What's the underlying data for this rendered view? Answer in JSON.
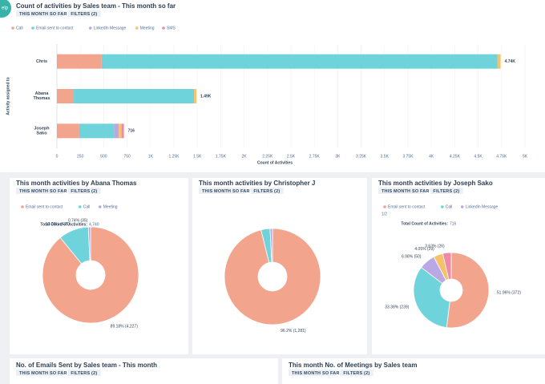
{
  "help_button": "elp",
  "chart_data": [
    {
      "type": "hbar_stacked",
      "title": "Count of activities by Sales team - This month so far",
      "tags": [
        "THIS MONTH SO FAR",
        "FILTERS (2)"
      ],
      "y_label": "Activity assigned to",
      "x_label": "Count of Activities",
      "categories": [
        "Chris",
        "Abana Thomas",
        "Joseph Sako"
      ],
      "series": [
        {
          "name": "Call",
          "color": "#f2a48d",
          "values": [
            478,
            180,
            239
          ]
        },
        {
          "name": "Email sent to contact",
          "color": "#6fd3dc",
          "values": [
            4227,
            1285,
            372
          ]
        },
        {
          "name": "LinkedIn Message",
          "color": "#b9a8e4",
          "values": [
            0,
            0,
            50
          ]
        },
        {
          "name": "Meeting",
          "color": "#f5c26b",
          "values": [
            35,
            25,
            29
          ]
        },
        {
          "name": "SMS",
          "color": "#ee8aa8",
          "values": [
            0,
            0,
            26
          ]
        }
      ],
      "total_labels": [
        "4.74K",
        "1.49K",
        "716"
      ],
      "xlim": [
        0,
        5000
      ],
      "xticks": [
        0,
        250,
        500,
        750,
        {
          "value": 1000,
          "label": "1K"
        },
        {
          "value": 1250,
          "label": "1.25K"
        },
        {
          "value": 1500,
          "label": "1.5K"
        },
        {
          "value": 1750,
          "label": "1.75K"
        },
        {
          "value": 2000,
          "label": "2K"
        },
        {
          "value": 2250,
          "label": "2.25K"
        },
        {
          "value": 2500,
          "label": "2.5K"
        },
        {
          "value": 2750,
          "label": "2.75K"
        },
        {
          "value": 3000,
          "label": "3K"
        },
        {
          "value": 3250,
          "label": "3.25K"
        },
        {
          "value": 3500,
          "label": "3.5K"
        },
        {
          "value": 3750,
          "label": "3.75K"
        },
        {
          "value": 4000,
          "label": "4K"
        },
        {
          "value": 4250,
          "label": "4.25K"
        },
        {
          "value": 4500,
          "label": "4.5K"
        },
        {
          "value": 4750,
          "label": "4.75K"
        },
        {
          "value": 5000,
          "label": "5K"
        }
      ],
      "grid": true
    },
    {
      "type": "donut",
      "title": "This month activities by Abana Thomas",
      "tags": [
        "THIS MONTH SO FAR",
        "FILTERS (2)"
      ],
      "total_label": "Total Count of Activities:",
      "total_text": "4,740",
      "categories": [
        "Email sent to contact",
        "Call",
        "Meeting"
      ],
      "colors": [
        "#f2a48d",
        "#6fd3dc",
        "#b9a8e4"
      ],
      "values": [
        4227,
        478,
        35
      ],
      "value_labels": [
        "89.18% (4,227)",
        "10.08% (478)",
        "0.74% (35)"
      ]
    },
    {
      "type": "donut",
      "title": "This month activities by Christopher J",
      "tags": [
        "THIS MONTH SO FAR",
        "FILTERS (2)"
      ],
      "categories": [
        null,
        null,
        null
      ],
      "colors": [
        "#f2a48d",
        "#6fd3dc",
        "#b9a8e4"
      ],
      "values": [
        1281,
        40,
        11
      ],
      "value_labels": [
        "96.2% (1,281)",
        null,
        null
      ]
    },
    {
      "type": "donut",
      "title": "This month activities by Joseph Sako",
      "tags": [
        "THIS MONTH SO FAR",
        "FILTERS (2)"
      ],
      "legend_pager": "1/2",
      "total_label": "Total Count of Activities:",
      "total_text": "716",
      "categories": [
        "Email sent to contact",
        "Call",
        "LinkedIn Message",
        null,
        null
      ],
      "colors": [
        "#f2a48d",
        "#6fd3dc",
        "#b9a8e4",
        "#f5c26b",
        "#ee8aa8"
      ],
      "values": [
        372,
        239,
        50,
        29,
        26
      ],
      "value_labels": [
        "51.96% (372)",
        "33.38% (239)",
        "6.98% (50)",
        "4.05% (29)",
        "3.63% (26)"
      ]
    }
  ],
  "panels": [
    {
      "title": "No. of Emails Sent by Sales team - This month",
      "tags": [
        "THIS MONTH SO FAR",
        "FILTERS (2)"
      ]
    },
    {
      "title": "This month No. of Meetings by Sales team",
      "tags": [
        "THIS MONTH SO FAR",
        "FILTERS (2)"
      ]
    }
  ]
}
